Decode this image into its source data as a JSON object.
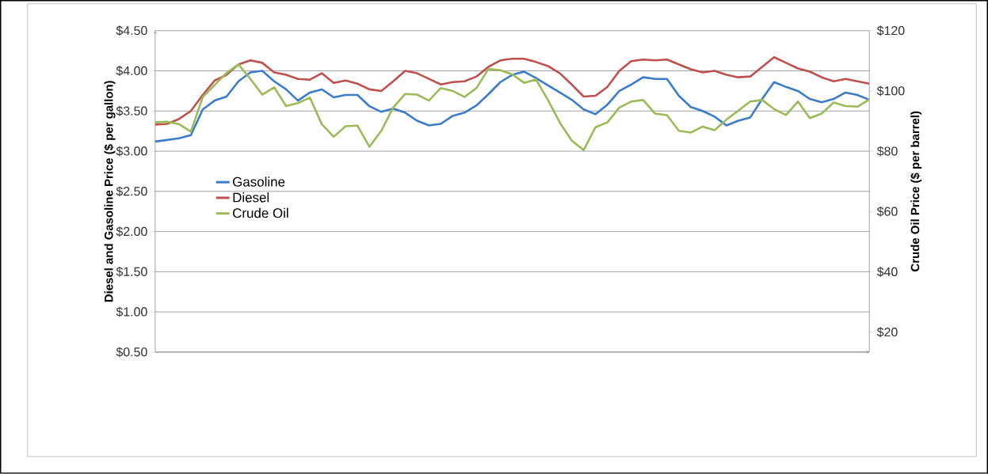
{
  "chart_data": {
    "type": "line",
    "ylabel": "Diesel and Gasoline Price ($ per gallon)",
    "y2label": "Crude Oil Price ($ per barrel)",
    "categories": [
      null,
      null,
      null,
      null,
      null,
      null,
      null,
      null,
      null,
      null,
      null,
      null,
      null,
      null,
      null,
      null,
      null,
      null,
      null,
      null,
      null,
      null,
      null,
      null,
      null,
      null,
      null,
      null,
      null,
      null,
      null,
      null,
      null,
      null,
      null,
      null,
      null,
      null,
      null,
      null,
      null,
      null,
      null,
      null,
      null,
      null,
      null,
      null,
      null,
      null,
      null,
      null,
      null,
      null,
      null,
      null,
      null,
      null,
      null,
      null,
      null
    ],
    "series": [
      {
        "name": "Gasoline",
        "color": "#3d7cc9",
        "values": [
          3.12,
          3.14,
          3.16,
          3.2,
          3.52,
          3.63,
          3.68,
          3.87,
          3.98,
          4.0,
          3.87,
          3.77,
          3.63,
          3.73,
          3.77,
          3.67,
          3.7,
          3.7,
          3.56,
          3.49,
          3.53,
          3.48,
          3.38,
          3.32,
          3.34,
          3.44,
          3.48,
          3.57,
          3.71,
          3.86,
          3.95,
          3.99,
          3.91,
          3.82,
          3.73,
          3.64,
          3.52,
          3.46,
          3.58,
          3.75,
          3.83,
          3.92,
          3.9,
          3.9,
          3.69,
          3.55,
          3.5,
          3.43,
          3.32,
          3.38,
          3.42,
          3.65,
          3.86,
          3.8,
          3.75,
          3.65,
          3.61,
          3.65,
          3.73,
          3.7,
          3.64
        ]
      },
      {
        "name": "Diesel",
        "color": "#c0504d",
        "values": [
          3.33,
          3.34,
          3.4,
          3.5,
          3.7,
          3.88,
          3.95,
          4.08,
          4.13,
          4.1,
          3.98,
          3.95,
          3.9,
          3.89,
          3.97,
          3.85,
          3.88,
          3.84,
          3.77,
          3.75,
          3.87,
          4.0,
          3.97,
          3.9,
          3.83,
          3.86,
          3.87,
          3.93,
          4.05,
          4.13,
          4.15,
          4.15,
          4.11,
          4.06,
          3.97,
          3.83,
          3.68,
          3.69,
          3.8,
          4.0,
          4.12,
          4.14,
          4.13,
          4.14,
          4.08,
          4.02,
          3.98,
          4.0,
          3.95,
          3.92,
          3.93,
          4.05,
          4.17,
          4.1,
          4.03,
          3.99,
          3.92,
          3.87,
          3.9,
          3.87,
          3.84
        ]
      },
      {
        "name": "Crude Oil",
        "color": "#9bbb59",
        "axis": "y2",
        "values": [
          89.6,
          89.8,
          89.0,
          86.5,
          98.0,
          102.0,
          106.0,
          108.8,
          104.0,
          98.8,
          101.2,
          95.0,
          96.0,
          97.8,
          89.0,
          84.8,
          88.3,
          88.5,
          81.5,
          86.8,
          94.5,
          99.0,
          98.8,
          96.8,
          101.0,
          100.0,
          98.0,
          101.0,
          107.3,
          106.9,
          105.5,
          102.7,
          103.8,
          97.0,
          89.5,
          83.5,
          80.4,
          88.0,
          89.6,
          94.5,
          96.5,
          97.0,
          92.5,
          92.0,
          86.8,
          86.2,
          88.2,
          87.0,
          90.5,
          93.5,
          96.5,
          97.0,
          94.0,
          92.0,
          96.5,
          91.0,
          92.5,
          96.2,
          95.0,
          94.8,
          97.2
        ]
      }
    ],
    "ylim": [
      0.5,
      4.5
    ],
    "yticks": [
      {
        "value": 0.5,
        "label": "$0.50"
      },
      {
        "value": 1.0,
        "label": "$1.00"
      },
      {
        "value": 1.5,
        "label": "$1.50"
      },
      {
        "value": 2.0,
        "label": "$2.00"
      },
      {
        "value": 2.5,
        "label": "$2.50"
      },
      {
        "value": 3.0,
        "label": "$3.00"
      },
      {
        "value": 3.5,
        "label": "$3.50"
      },
      {
        "value": 4.0,
        "label": "$4.00"
      },
      {
        "value": 4.5,
        "label": "$4.50"
      }
    ],
    "y2lim": [
      13.4,
      120
    ],
    "y2ticks": [
      {
        "value": 20,
        "label": "$20"
      },
      {
        "value": 40,
        "label": "$40"
      },
      {
        "value": 60,
        "label": "$60"
      },
      {
        "value": 80,
        "label": "$80"
      },
      {
        "value": 100,
        "label": "$100"
      },
      {
        "value": 120,
        "label": "$120"
      }
    ],
    "grid": "y",
    "legend": "left",
    "line_style": "solid"
  }
}
